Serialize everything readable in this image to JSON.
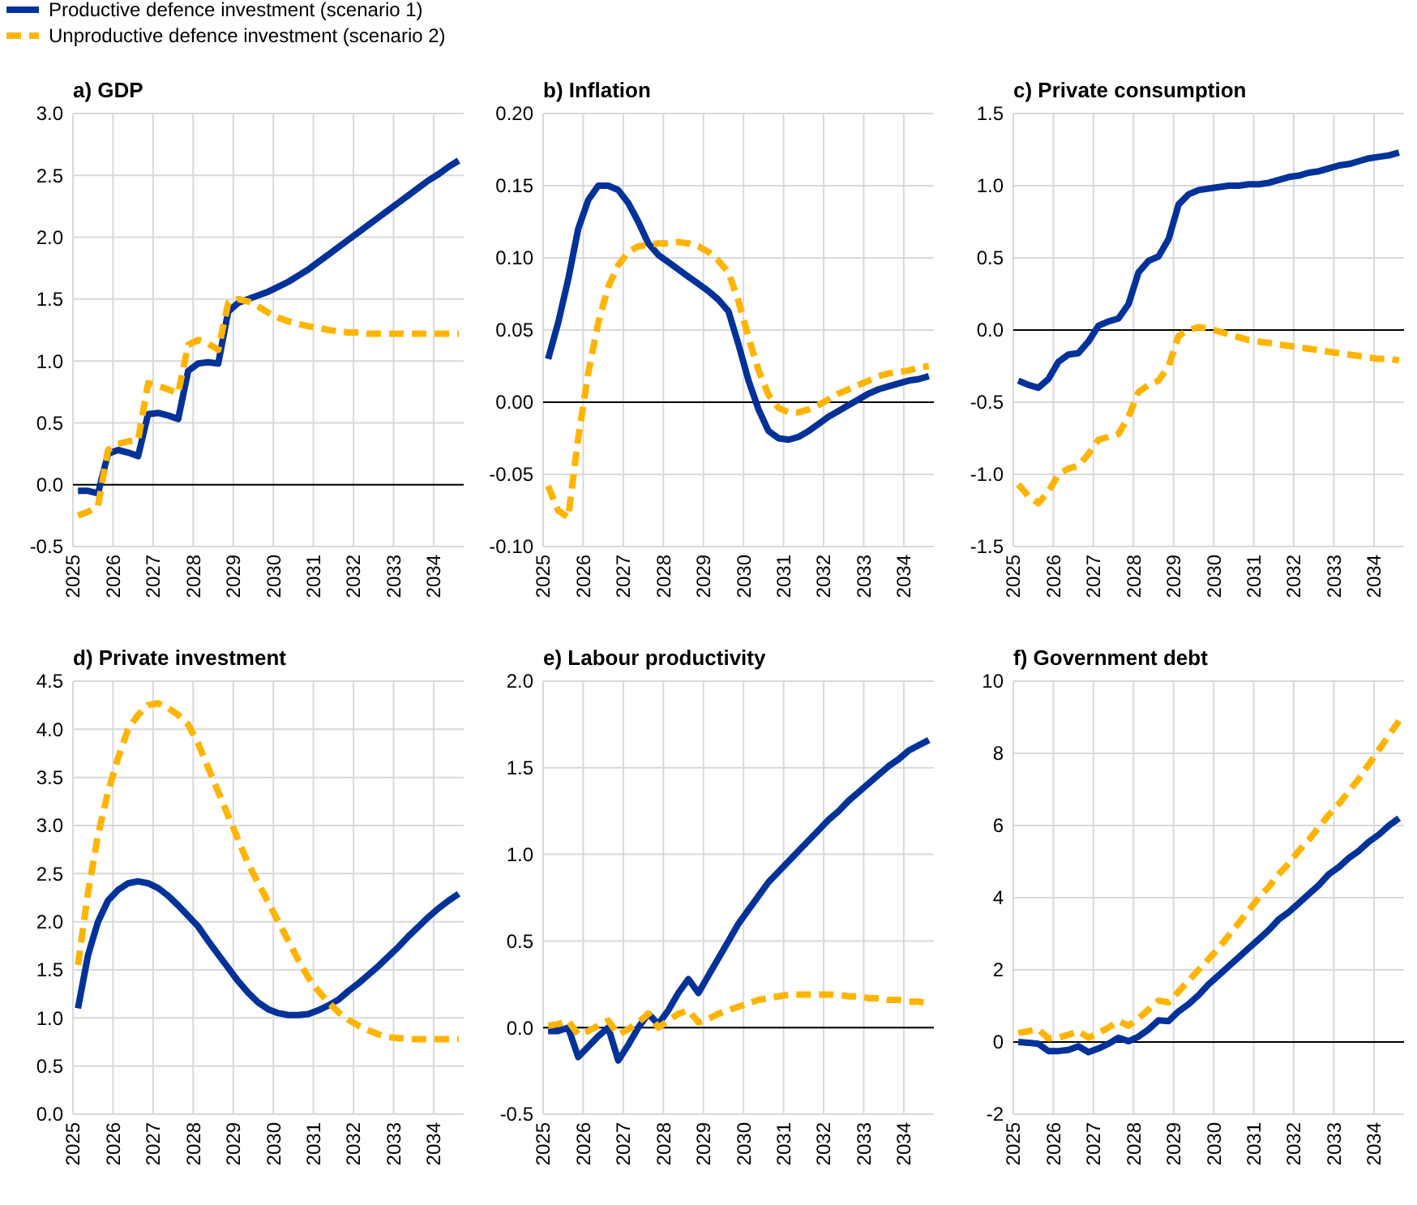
{
  "chart_data": [
    {
      "type": "line",
      "title": "a) GDP",
      "legend": "top left",
      "grid": true,
      "x": [
        2025.125,
        2025.375,
        2025.625,
        2025.875,
        2026.125,
        2026.375,
        2026.625,
        2026.875,
        2027.125,
        2027.375,
        2027.625,
        2027.875,
        2028.125,
        2028.375,
        2028.625,
        2028.875,
        2029.125,
        2029.375,
        2029.625,
        2029.875,
        2030.125,
        2030.375,
        2030.625,
        2030.875,
        2031.125,
        2031.375,
        2031.625,
        2031.875,
        2032.125,
        2032.375,
        2032.625,
        2032.875,
        2033.125,
        2033.375,
        2033.625,
        2033.875,
        2034.125,
        2034.375,
        2034.625
      ],
      "xlim": [
        2025,
        2034.75
      ],
      "xticks": [
        2025,
        2026,
        2027,
        2028,
        2029,
        2030,
        2031,
        2032,
        2033,
        2034
      ],
      "ylim": [
        -0.5,
        3
      ],
      "yticks": [
        {
          "value": -0.5,
          "label": "-0.5"
        },
        {
          "value": 0,
          "label": "0.0"
        },
        {
          "value": 0.5,
          "label": "0.5"
        },
        {
          "value": 1,
          "label": "1.0"
        },
        {
          "value": 1.5,
          "label": "1.5"
        },
        {
          "value": 2,
          "label": "2.0"
        },
        {
          "value": 2.5,
          "label": "2.5"
        },
        {
          "value": 3,
          "label": "3.0"
        }
      ],
      "ref_lines": [
        {
          "axis": "y",
          "value": 0,
          "color": "#000000"
        }
      ],
      "series": [
        {
          "name": "Productive defence investment (scenario 1)",
          "color": "#003299",
          "line_style": "solid",
          "values": [
            -0.05,
            -0.05,
            -0.07,
            0.25,
            0.28,
            0.26,
            0.23,
            0.57,
            0.58,
            0.56,
            0.53,
            0.92,
            0.98,
            0.99,
            0.98,
            1.4,
            1.47,
            1.5,
            1.53,
            1.56,
            1.6,
            1.64,
            1.69,
            1.74,
            1.8,
            1.86,
            1.92,
            1.98,
            2.04,
            2.1,
            2.16,
            2.22,
            2.28,
            2.34,
            2.4,
            2.46,
            2.51,
            2.57,
            2.62
          ]
        },
        {
          "name": "Unproductive defence investment (scenario 2)",
          "color": "#ffb400",
          "line_style": "dashed",
          "values": [
            -0.25,
            -0.22,
            -0.17,
            0.28,
            0.33,
            0.35,
            0.36,
            0.82,
            0.8,
            0.77,
            0.74,
            1.13,
            1.17,
            1.14,
            1.09,
            1.47,
            1.5,
            1.48,
            1.44,
            1.39,
            1.35,
            1.32,
            1.3,
            1.28,
            1.27,
            1.25,
            1.24,
            1.23,
            1.23,
            1.22,
            1.22,
            1.22,
            1.22,
            1.22,
            1.22,
            1.22,
            1.22,
            1.22,
            1.22
          ]
        }
      ]
    },
    {
      "type": "line",
      "title": "b) Inflation",
      "grid": true,
      "x": [
        2025.125,
        2025.375,
        2025.625,
        2025.875,
        2026.125,
        2026.375,
        2026.625,
        2026.875,
        2027.125,
        2027.375,
        2027.625,
        2027.875,
        2028.125,
        2028.375,
        2028.625,
        2028.875,
        2029.125,
        2029.375,
        2029.625,
        2029.875,
        2030.125,
        2030.375,
        2030.625,
        2030.875,
        2031.125,
        2031.375,
        2031.625,
        2031.875,
        2032.125,
        2032.375,
        2032.625,
        2032.875,
        2033.125,
        2033.375,
        2033.625,
        2033.875,
        2034.125,
        2034.375,
        2034.625
      ],
      "xlim": [
        2025,
        2034.75
      ],
      "xticks": [
        2025,
        2026,
        2027,
        2028,
        2029,
        2030,
        2031,
        2032,
        2033,
        2034
      ],
      "ylim": [
        -0.1,
        0.2
      ],
      "yticks": [
        {
          "value": -0.1,
          "label": "-0.10"
        },
        {
          "value": -0.05,
          "label": "-0.05"
        },
        {
          "value": 0,
          "label": "0.00"
        },
        {
          "value": 0.05,
          "label": "0.05"
        },
        {
          "value": 0.1,
          "label": "0.10"
        },
        {
          "value": 0.15,
          "label": "0.15"
        },
        {
          "value": 0.2,
          "label": "0.20"
        }
      ],
      "ref_lines": [
        {
          "axis": "y",
          "value": 0,
          "color": "#000000"
        }
      ],
      "series": [
        {
          "color": "#003299",
          "line_style": "solid",
          "values": [
            0.03,
            0.055,
            0.085,
            0.12,
            0.14,
            0.15,
            0.15,
            0.147,
            0.138,
            0.125,
            0.11,
            0.102,
            0.097,
            0.092,
            0.087,
            0.082,
            0.077,
            0.071,
            0.063,
            0.04,
            0.015,
            -0.005,
            -0.02,
            -0.025,
            -0.026,
            -0.024,
            -0.02,
            -0.015,
            -0.01,
            -0.006,
            -0.002,
            0.002,
            0.006,
            0.009,
            0.011,
            0.013,
            0.015,
            0.016,
            0.018
          ]
        },
        {
          "color": "#ffb400",
          "line_style": "dashed",
          "values": [
            -0.058,
            -0.075,
            -0.08,
            -0.025,
            0.02,
            0.055,
            0.08,
            0.095,
            0.104,
            0.108,
            0.109,
            0.11,
            0.11,
            0.111,
            0.11,
            0.108,
            0.104,
            0.098,
            0.09,
            0.07,
            0.045,
            0.022,
            0.005,
            -0.004,
            -0.007,
            -0.007,
            -0.005,
            -0.002,
            0.002,
            0.006,
            0.009,
            0.012,
            0.015,
            0.018,
            0.02,
            0.021,
            0.022,
            0.024,
            0.025
          ]
        }
      ]
    },
    {
      "type": "line",
      "title": "c) Private consumption",
      "grid": true,
      "x": [
        2025.125,
        2025.375,
        2025.625,
        2025.875,
        2026.125,
        2026.375,
        2026.625,
        2026.875,
        2027.125,
        2027.375,
        2027.625,
        2027.875,
        2028.125,
        2028.375,
        2028.625,
        2028.875,
        2029.125,
        2029.375,
        2029.625,
        2029.875,
        2030.125,
        2030.375,
        2030.625,
        2030.875,
        2031.125,
        2031.375,
        2031.625,
        2031.875,
        2032.125,
        2032.375,
        2032.625,
        2032.875,
        2033.125,
        2033.375,
        2033.625,
        2033.875,
        2034.125,
        2034.375,
        2034.625
      ],
      "xlim": [
        2025,
        2034.75
      ],
      "xticks": [
        2025,
        2026,
        2027,
        2028,
        2029,
        2030,
        2031,
        2032,
        2033,
        2034
      ],
      "ylim": [
        -1.5,
        1.5
      ],
      "yticks": [
        {
          "value": -1.5,
          "label": "-1.5"
        },
        {
          "value": -1,
          "label": "-1.0"
        },
        {
          "value": -0.5,
          "label": "-0.5"
        },
        {
          "value": 0,
          "label": "0.0"
        },
        {
          "value": 0.5,
          "label": "0.5"
        },
        {
          "value": 1,
          "label": "1.0"
        },
        {
          "value": 1.5,
          "label": "1.5"
        }
      ],
      "ref_lines": [
        {
          "axis": "y",
          "value": 0,
          "color": "#000000"
        }
      ],
      "series": [
        {
          "color": "#003299",
          "line_style": "solid",
          "values": [
            -0.35,
            -0.38,
            -0.4,
            -0.34,
            -0.22,
            -0.17,
            -0.16,
            -0.08,
            0.03,
            0.06,
            0.08,
            0.18,
            0.4,
            0.48,
            0.51,
            0.63,
            0.87,
            0.94,
            0.97,
            0.98,
            0.99,
            1.0,
            1.0,
            1.01,
            1.01,
            1.02,
            1.04,
            1.06,
            1.07,
            1.09,
            1.1,
            1.12,
            1.14,
            1.15,
            1.17,
            1.19,
            1.2,
            1.21,
            1.23
          ]
        },
        {
          "color": "#ffb400",
          "line_style": "dashed",
          "values": [
            -1.07,
            -1.15,
            -1.2,
            -1.12,
            -1.0,
            -0.96,
            -0.94,
            -0.86,
            -0.76,
            -0.74,
            -0.72,
            -0.6,
            -0.43,
            -0.38,
            -0.35,
            -0.25,
            -0.04,
            0.0,
            0.02,
            0.01,
            -0.01,
            -0.03,
            -0.05,
            -0.07,
            -0.08,
            -0.09,
            -0.1,
            -0.11,
            -0.12,
            -0.13,
            -0.14,
            -0.15,
            -0.16,
            -0.17,
            -0.18,
            -0.19,
            -0.2,
            -0.2,
            -0.21
          ]
        }
      ]
    },
    {
      "type": "line",
      "title": "d) Private investment",
      "grid": true,
      "x": [
        2025.125,
        2025.375,
        2025.625,
        2025.875,
        2026.125,
        2026.375,
        2026.625,
        2026.875,
        2027.125,
        2027.375,
        2027.625,
        2027.875,
        2028.125,
        2028.375,
        2028.625,
        2028.875,
        2029.125,
        2029.375,
        2029.625,
        2029.875,
        2030.125,
        2030.375,
        2030.625,
        2030.875,
        2031.125,
        2031.375,
        2031.625,
        2031.875,
        2032.125,
        2032.375,
        2032.625,
        2032.875,
        2033.125,
        2033.375,
        2033.625,
        2033.875,
        2034.125,
        2034.375,
        2034.625
      ],
      "xlim": [
        2025,
        2034.75
      ],
      "xticks": [
        2025,
        2026,
        2027,
        2028,
        2029,
        2030,
        2031,
        2032,
        2033,
        2034
      ],
      "ylim": [
        0,
        4.5
      ],
      "yticks": [
        {
          "value": 0,
          "label": "0.0"
        },
        {
          "value": 0.5,
          "label": "0.5"
        },
        {
          "value": 1,
          "label": "1.0"
        },
        {
          "value": 1.5,
          "label": "1.5"
        },
        {
          "value": 2,
          "label": "2.0"
        },
        {
          "value": 2.5,
          "label": "2.5"
        },
        {
          "value": 3,
          "label": "3.0"
        },
        {
          "value": 3.5,
          "label": "3.5"
        },
        {
          "value": 4,
          "label": "4.0"
        },
        {
          "value": 4.5,
          "label": "4.5"
        }
      ],
      "series": [
        {
          "color": "#003299",
          "line_style": "solid",
          "values": [
            1.1,
            1.65,
            2.0,
            2.22,
            2.33,
            2.4,
            2.42,
            2.4,
            2.35,
            2.27,
            2.17,
            2.06,
            1.95,
            1.8,
            1.66,
            1.52,
            1.38,
            1.26,
            1.16,
            1.09,
            1.05,
            1.03,
            1.03,
            1.04,
            1.08,
            1.13,
            1.19,
            1.28,
            1.36,
            1.45,
            1.54,
            1.64,
            1.74,
            1.85,
            1.95,
            2.05,
            2.14,
            2.22,
            2.29
          ]
        },
        {
          "color": "#ffb400",
          "line_style": "dashed",
          "values": [
            1.55,
            2.3,
            2.9,
            3.35,
            3.7,
            4.0,
            4.15,
            4.25,
            4.27,
            4.22,
            4.15,
            4.05,
            3.85,
            3.6,
            3.35,
            3.1,
            2.85,
            2.6,
            2.4,
            2.2,
            2.0,
            1.8,
            1.6,
            1.42,
            1.28,
            1.16,
            1.06,
            0.98,
            0.92,
            0.87,
            0.83,
            0.8,
            0.79,
            0.78,
            0.78,
            0.78,
            0.78,
            0.78,
            0.78
          ]
        }
      ]
    },
    {
      "type": "line",
      "title": "e) Labour productivity",
      "grid": true,
      "x": [
        2025.125,
        2025.375,
        2025.625,
        2025.875,
        2026.125,
        2026.375,
        2026.625,
        2026.875,
        2027.125,
        2027.375,
        2027.625,
        2027.875,
        2028.125,
        2028.375,
        2028.625,
        2028.875,
        2029.125,
        2029.375,
        2029.625,
        2029.875,
        2030.125,
        2030.375,
        2030.625,
        2030.875,
        2031.125,
        2031.375,
        2031.625,
        2031.875,
        2032.125,
        2032.375,
        2032.625,
        2032.875,
        2033.125,
        2033.375,
        2033.625,
        2033.875,
        2034.125,
        2034.375,
        2034.625
      ],
      "xlim": [
        2025,
        2034.75
      ],
      "xticks": [
        2025,
        2026,
        2027,
        2028,
        2029,
        2030,
        2031,
        2032,
        2033,
        2034
      ],
      "ylim": [
        -0.5,
        2
      ],
      "yticks": [
        {
          "value": -0.5,
          "label": "-0.5"
        },
        {
          "value": 0,
          "label": "0.0"
        },
        {
          "value": 0.5,
          "label": "0.5"
        },
        {
          "value": 1,
          "label": "1.0"
        },
        {
          "value": 1.5,
          "label": "1.5"
        },
        {
          "value": 2,
          "label": "2.0"
        }
      ],
      "ref_lines": [
        {
          "axis": "y",
          "value": 0,
          "color": "#000000"
        }
      ],
      "series": [
        {
          "color": "#003299",
          "line_style": "solid",
          "values": [
            -0.02,
            -0.02,
            0.0,
            -0.17,
            -0.11,
            -0.05,
            0.0,
            -0.19,
            -0.1,
            0.0,
            0.08,
            0.02,
            0.1,
            0.2,
            0.28,
            0.2,
            0.3,
            0.4,
            0.5,
            0.6,
            0.68,
            0.76,
            0.84,
            0.9,
            0.96,
            1.02,
            1.08,
            1.14,
            1.2,
            1.25,
            1.31,
            1.36,
            1.41,
            1.46,
            1.51,
            1.55,
            1.6,
            1.63,
            1.66
          ]
        },
        {
          "color": "#ffb400",
          "line_style": "dashed",
          "values": [
            0.01,
            0.02,
            0.04,
            -0.04,
            -0.02,
            0.01,
            0.04,
            -0.04,
            -0.01,
            0.03,
            0.08,
            0.0,
            0.04,
            0.08,
            0.1,
            0.03,
            0.05,
            0.08,
            0.1,
            0.12,
            0.14,
            0.16,
            0.17,
            0.18,
            0.19,
            0.19,
            0.19,
            0.19,
            0.19,
            0.19,
            0.18,
            0.18,
            0.17,
            0.17,
            0.16,
            0.16,
            0.15,
            0.15,
            0.14
          ]
        }
      ]
    },
    {
      "type": "line",
      "title": "f) Government debt",
      "grid": true,
      "x": [
        2025.125,
        2025.375,
        2025.625,
        2025.875,
        2026.125,
        2026.375,
        2026.625,
        2026.875,
        2027.125,
        2027.375,
        2027.625,
        2027.875,
        2028.125,
        2028.375,
        2028.625,
        2028.875,
        2029.125,
        2029.375,
        2029.625,
        2029.875,
        2030.125,
        2030.375,
        2030.625,
        2030.875,
        2031.125,
        2031.375,
        2031.625,
        2031.875,
        2032.125,
        2032.375,
        2032.625,
        2032.875,
        2033.125,
        2033.375,
        2033.625,
        2033.875,
        2034.125,
        2034.375,
        2034.625
      ],
      "xlim": [
        2025,
        2034.75
      ],
      "xticks": [
        2025,
        2026,
        2027,
        2028,
        2029,
        2030,
        2031,
        2032,
        2033,
        2034
      ],
      "ylim": [
        -2,
        10
      ],
      "yticks": [
        -2,
        0,
        2,
        4,
        6,
        8,
        10
      ],
      "ref_lines": [
        {
          "axis": "y",
          "value": 0,
          "color": "#000000"
        }
      ],
      "series": [
        {
          "color": "#003299",
          "line_style": "solid",
          "values": [
            0.0,
            -0.02,
            -0.05,
            -0.25,
            -0.25,
            -0.22,
            -0.12,
            -0.28,
            -0.18,
            -0.05,
            0.12,
            0.02,
            0.15,
            0.35,
            0.6,
            0.58,
            0.85,
            1.05,
            1.3,
            1.6,
            1.85,
            2.1,
            2.35,
            2.6,
            2.85,
            3.1,
            3.4,
            3.6,
            3.85,
            4.1,
            4.35,
            4.65,
            4.85,
            5.1,
            5.3,
            5.55,
            5.75,
            6.0,
            6.2
          ]
        },
        {
          "color": "#ffb400",
          "line_style": "dashed",
          "values": [
            0.25,
            0.3,
            0.35,
            0.1,
            0.12,
            0.2,
            0.3,
            0.12,
            0.25,
            0.4,
            0.58,
            0.45,
            0.65,
            0.9,
            1.15,
            1.1,
            1.4,
            1.7,
            2.0,
            2.3,
            2.6,
            2.95,
            3.3,
            3.65,
            4.0,
            4.3,
            4.65,
            4.95,
            5.3,
            5.6,
            5.95,
            6.3,
            6.6,
            6.95,
            7.3,
            7.7,
            8.1,
            8.5,
            8.9
          ]
        }
      ]
    }
  ]
}
